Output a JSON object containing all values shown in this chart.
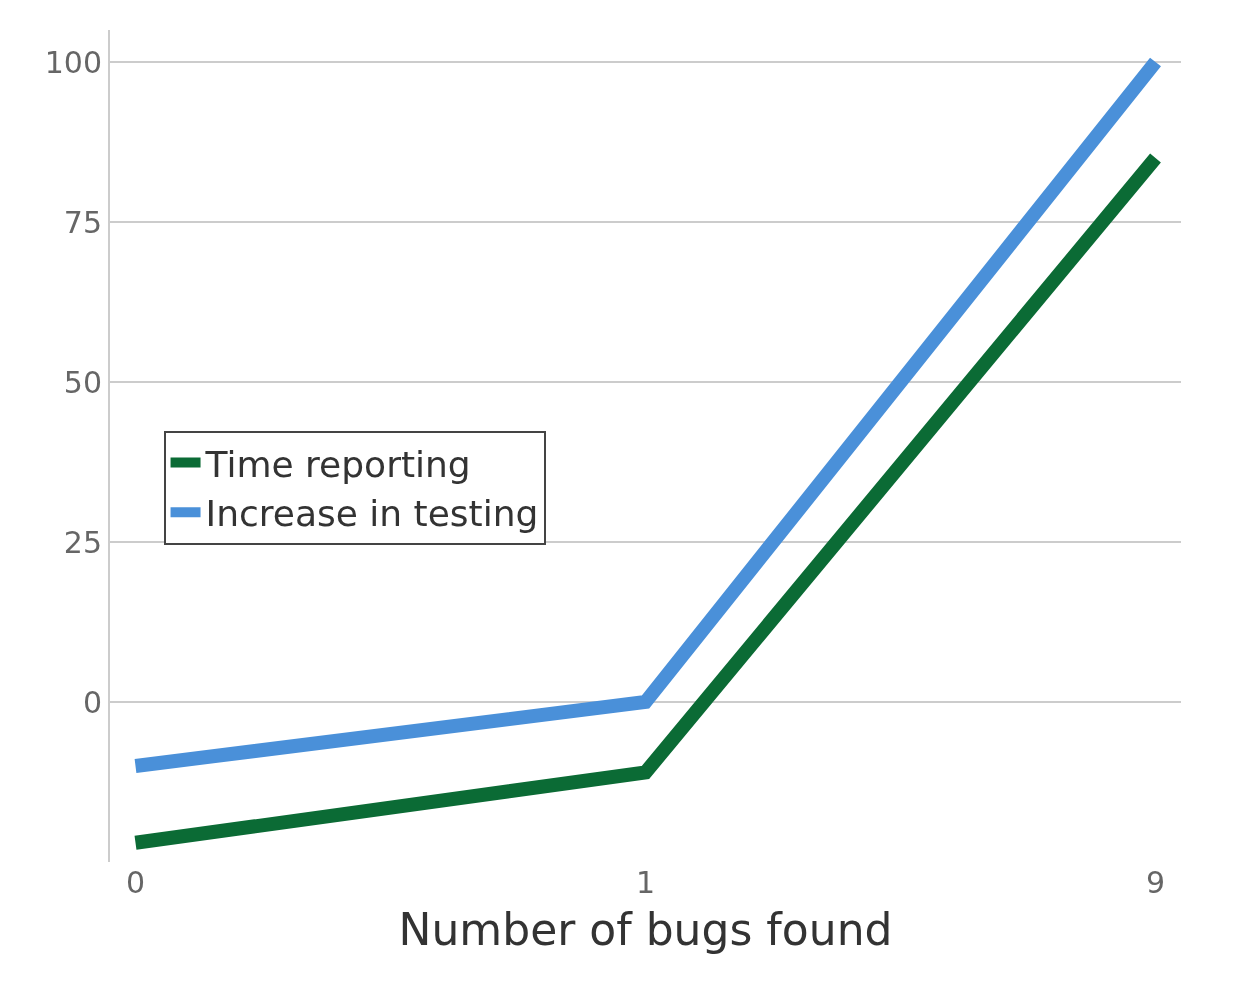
{
  "chart_data": {
    "type": "line",
    "xlabel": "Number of bugs found",
    "categories": [
      "0",
      "1",
      "9"
    ],
    "series": [
      {
        "name": "Time reporting",
        "color": "#0b6b35",
        "values": [
          -22,
          -11,
          85
        ]
      },
      {
        "name": "Increase in testing",
        "color": "#4a90d9",
        "values": [
          -10,
          0,
          100
        ]
      }
    ],
    "ylim": [
      -25,
      105
    ],
    "yticks": [
      0,
      25,
      50,
      75,
      100
    ],
    "grid": "y",
    "legend": "left",
    "marker": "none",
    "line_style": "solid"
  }
}
